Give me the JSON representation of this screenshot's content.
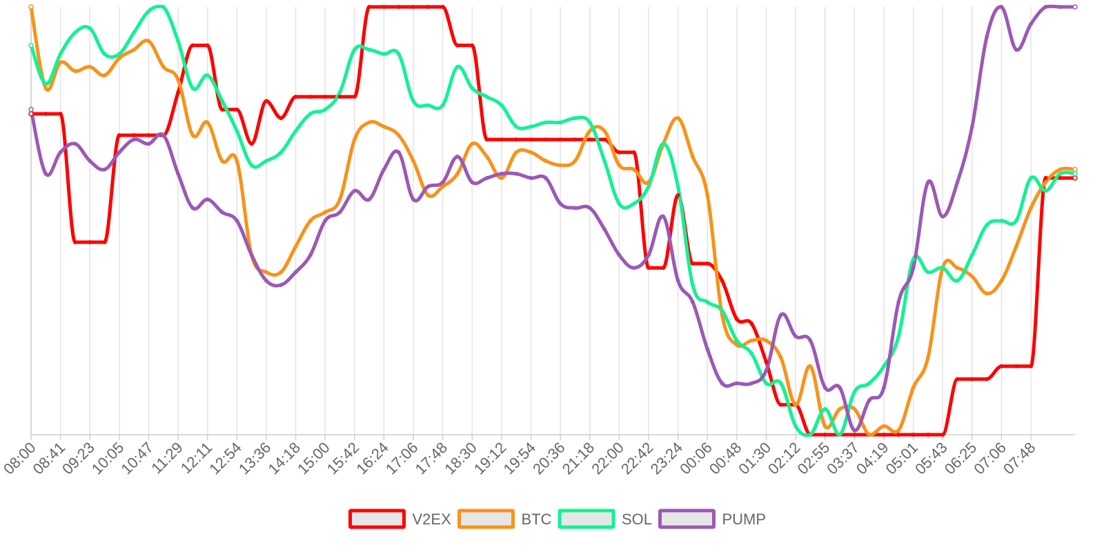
{
  "chart_data": {
    "type": "line",
    "title": "",
    "xlabel": "",
    "ylabel": "",
    "grid": "vertical",
    "legend_position": "bottom",
    "ylim": [
      0,
      100
    ],
    "x_tick_labels": [
      "08:00",
      "08:41",
      "09:23",
      "10:05",
      "10:47",
      "11:29",
      "12:11",
      "12:54",
      "13:36",
      "14:18",
      "15:00",
      "15:42",
      "16:24",
      "17:06",
      "17:48",
      "18:30",
      "19:12",
      "19:54",
      "20:36",
      "21:18",
      "22:00",
      "22:42",
      "23:24",
      "00:06",
      "00:48",
      "01:30",
      "02:12",
      "02:55",
      "03:37",
      "04:19",
      "05:01",
      "05:43",
      "06:25",
      "07:06",
      "07:48"
    ],
    "points_per_tick": 2,
    "series": [
      {
        "name": "V2EX",
        "color": "#ff0000",
        "interpolation": "monotone",
        "values": [
          75,
          75,
          75,
          45,
          45,
          45,
          70,
          70,
          70,
          70,
          80,
          91,
          91,
          76,
          76,
          68,
          78,
          74,
          79,
          79,
          79,
          79,
          79,
          100,
          100,
          100,
          100,
          100,
          100,
          91,
          91,
          69,
          69,
          69,
          69,
          69,
          69,
          69,
          69,
          69,
          66,
          66,
          39,
          39,
          56,
          40,
          40,
          36,
          27,
          26,
          17,
          7,
          7,
          0,
          0,
          0,
          0,
          0,
          0,
          0,
          0,
          0,
          0,
          13,
          13,
          13,
          16,
          16,
          16,
          60,
          60,
          60
        ]
      },
      {
        "name": "BTC",
        "color": "#f7931a",
        "interpolation": "smooth",
        "values": [
          100,
          81,
          87,
          85,
          86,
          84,
          88,
          90,
          92,
          86,
          83,
          70,
          73,
          64,
          64,
          42,
          38,
          38,
          44,
          50,
          52,
          55,
          69,
          73,
          72,
          70,
          64,
          56,
          58,
          61,
          68,
          65,
          60,
          66,
          66,
          64,
          63,
          64,
          71,
          71,
          63,
          62,
          59,
          68,
          74,
          65,
          56,
          28,
          21,
          22,
          22,
          18,
          7,
          16,
          2,
          6,
          6,
          0,
          2,
          1,
          11,
          18,
          39,
          39,
          37,
          33,
          36,
          44,
          53,
          59,
          62,
          62
        ]
      },
      {
        "name": "SOL",
        "color": "#14f195",
        "interpolation": "smooth",
        "values": [
          91,
          82,
          89,
          94,
          95,
          89,
          89,
          94,
          99,
          100,
          92,
          81,
          84,
          78,
          71,
          63,
          64,
          66,
          71,
          75,
          76,
          80,
          90,
          90,
          89,
          89,
          78,
          77,
          77,
          86,
          81,
          79,
          77,
          72,
          72,
          73,
          73,
          74,
          73,
          64,
          54,
          54,
          58,
          68,
          58,
          35,
          31,
          29,
          22,
          19,
          12,
          12,
          2,
          0,
          6,
          0,
          10,
          12,
          16,
          23,
          41,
          38,
          39,
          36,
          42,
          49,
          50,
          50,
          60,
          57,
          61,
          61
        ]
      },
      {
        "name": "PUMP",
        "color": "#9b59b6",
        "interpolation": "smooth",
        "values": [
          76,
          61,
          66,
          68,
          64,
          62,
          66,
          69,
          68,
          70,
          61,
          53,
          55,
          52,
          50,
          42,
          36,
          35,
          38,
          42,
          50,
          52,
          57,
          55,
          62,
          66,
          55,
          58,
          59,
          65,
          59,
          60,
          61,
          61,
          60,
          60,
          54,
          53,
          53,
          48,
          42,
          39,
          42,
          51,
          36,
          31,
          20,
          12,
          12,
          12,
          15,
          28,
          23,
          22,
          11,
          11,
          1,
          8,
          11,
          31,
          39,
          59,
          51,
          59,
          72,
          93,
          100,
          90,
          96,
          100,
          100,
          100
        ]
      }
    ]
  }
}
